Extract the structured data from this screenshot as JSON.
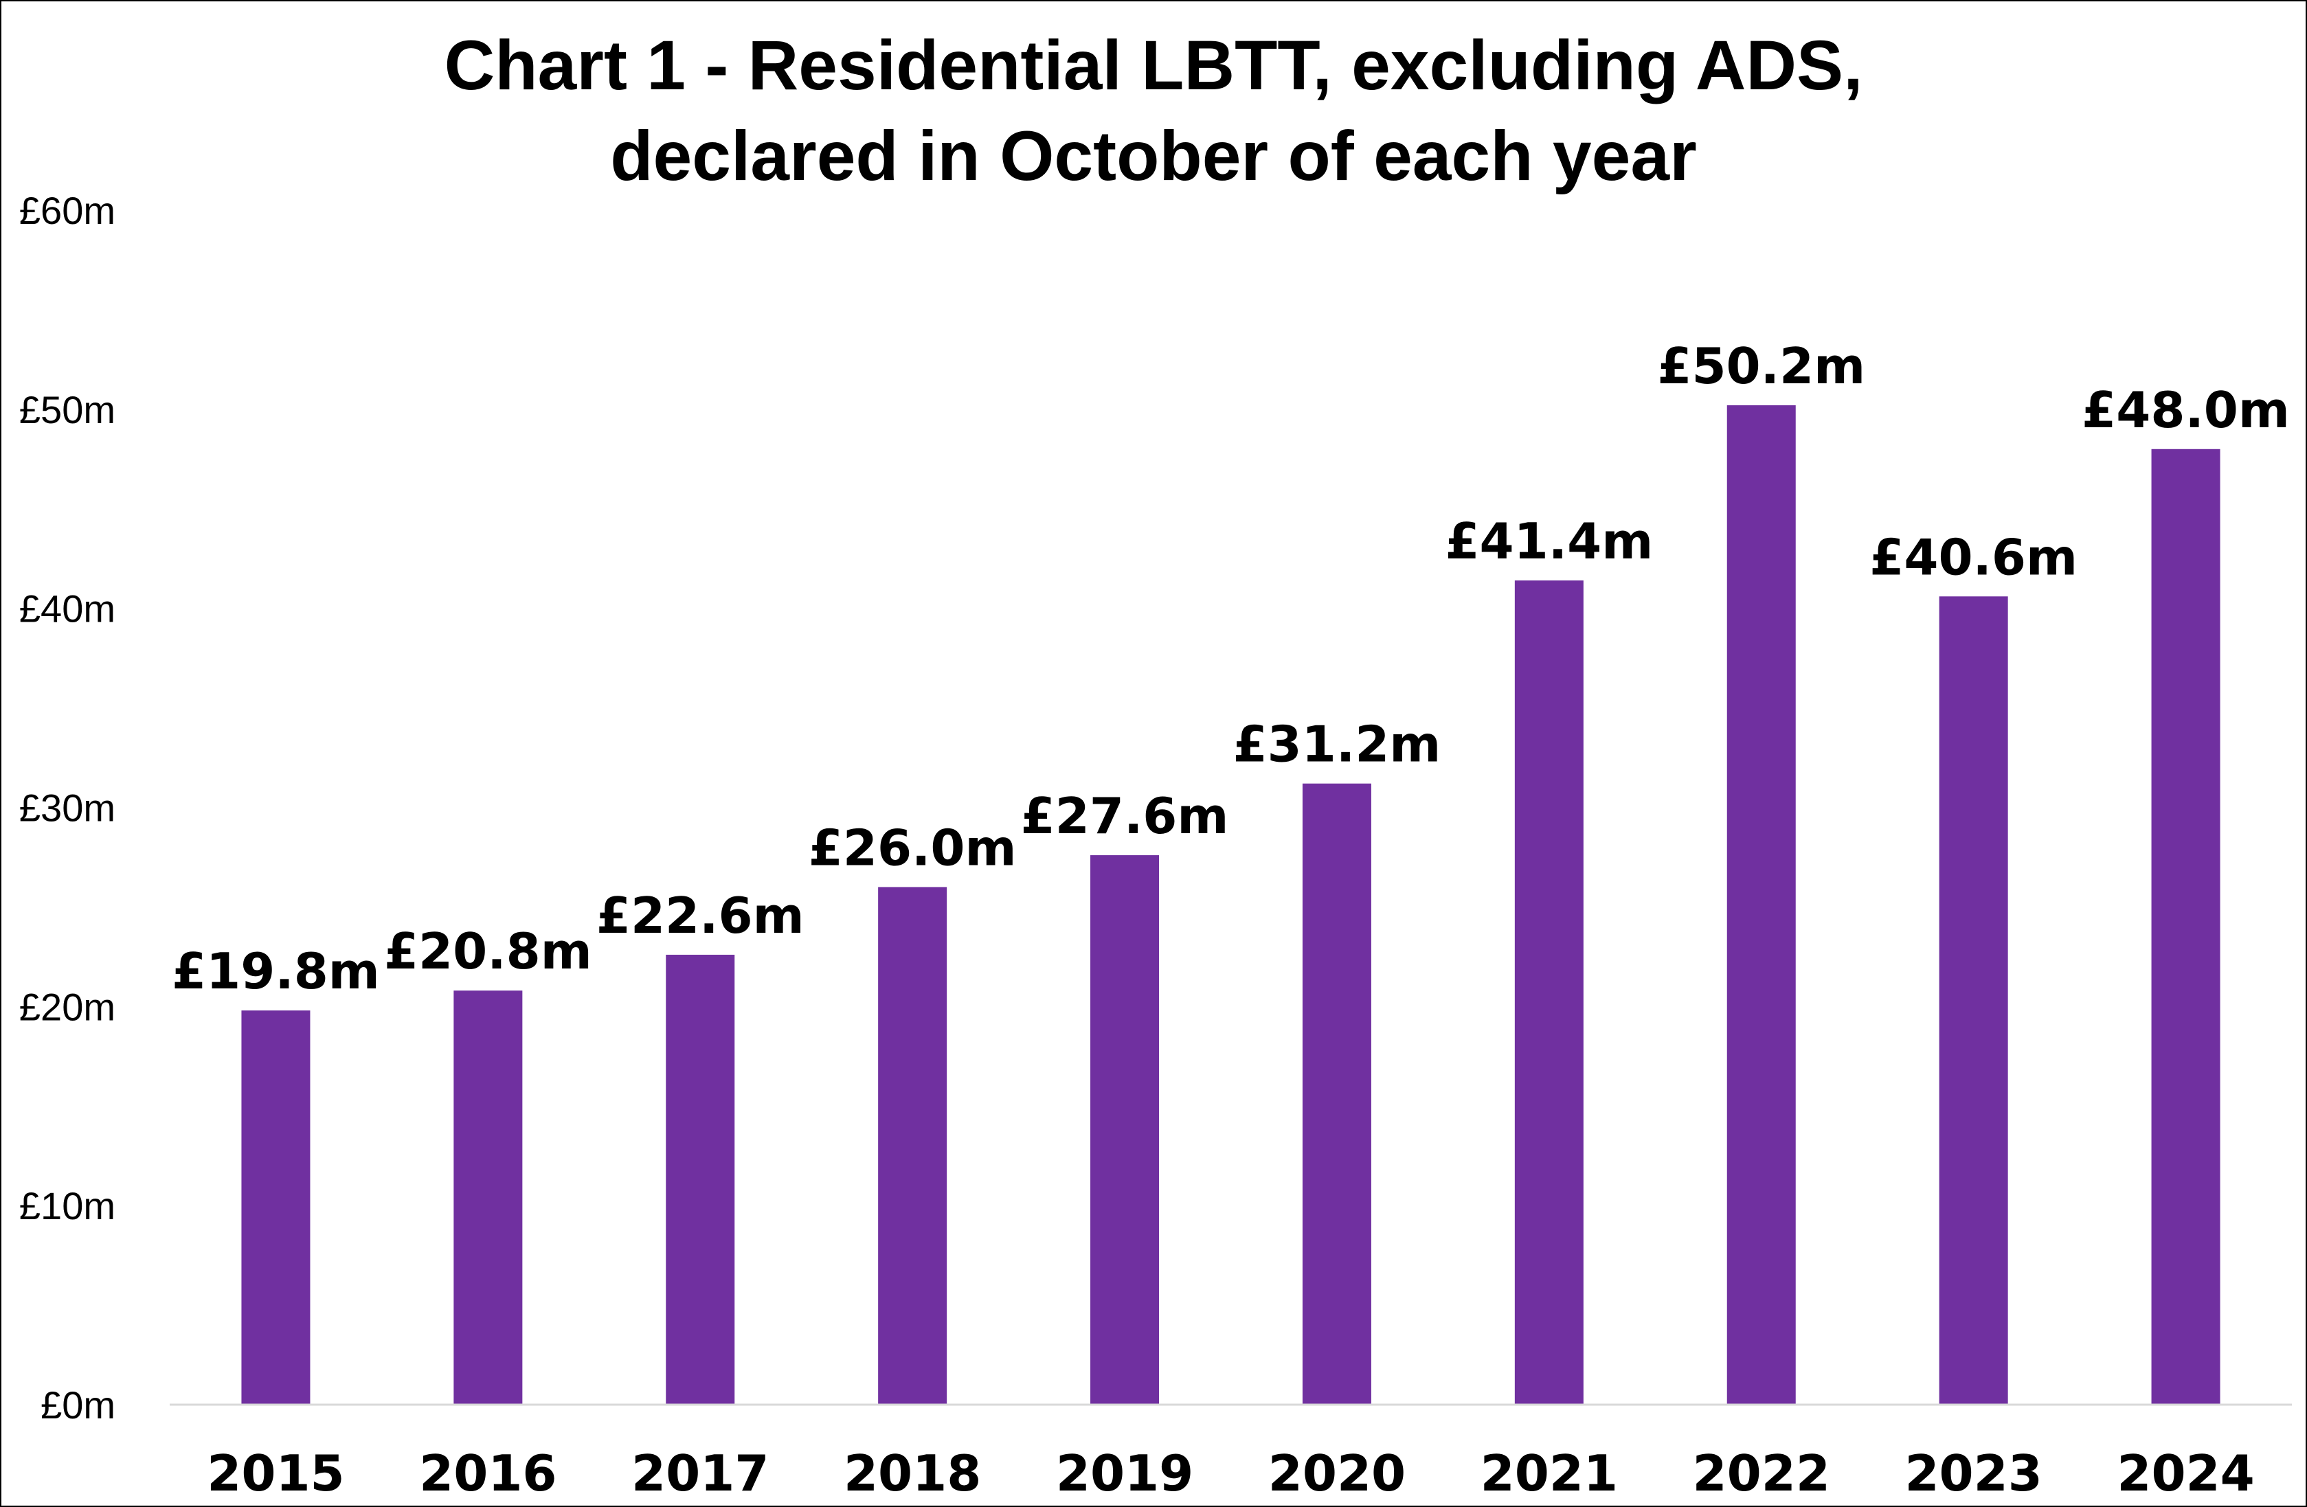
{
  "chart_data": {
    "type": "bar",
    "title_lines": [
      "Chart 1 - Residential LBTT, excluding ADS,",
      "declared in October of each year"
    ],
    "categories": [
      "2015",
      "2016",
      "2017",
      "2018",
      "2019",
      "2020",
      "2021",
      "2022",
      "2023",
      "2024"
    ],
    "values": [
      19.8,
      20.8,
      22.6,
      26.0,
      27.6,
      31.2,
      41.4,
      50.2,
      40.6,
      48.0
    ],
    "data_labels": [
      "£19.8m",
      "£20.8m",
      "£22.6m",
      "£26.0m",
      "£27.6m",
      "£31.2m",
      "£41.4m",
      "£50.2m",
      "£40.6m",
      "£48.0m"
    ],
    "y_ticks": [
      0,
      10,
      20,
      30,
      40,
      50,
      60
    ],
    "y_tick_labels": [
      "£0m",
      "£10m",
      "£20m",
      "£30m",
      "£40m",
      "£50m",
      "£60m"
    ],
    "ylim": [
      0,
      60
    ],
    "ylabel": "",
    "xlabel": "",
    "grid": false,
    "legend": "none",
    "bar_color": "#7030A0",
    "axis_color": "#D9D9D9"
  }
}
